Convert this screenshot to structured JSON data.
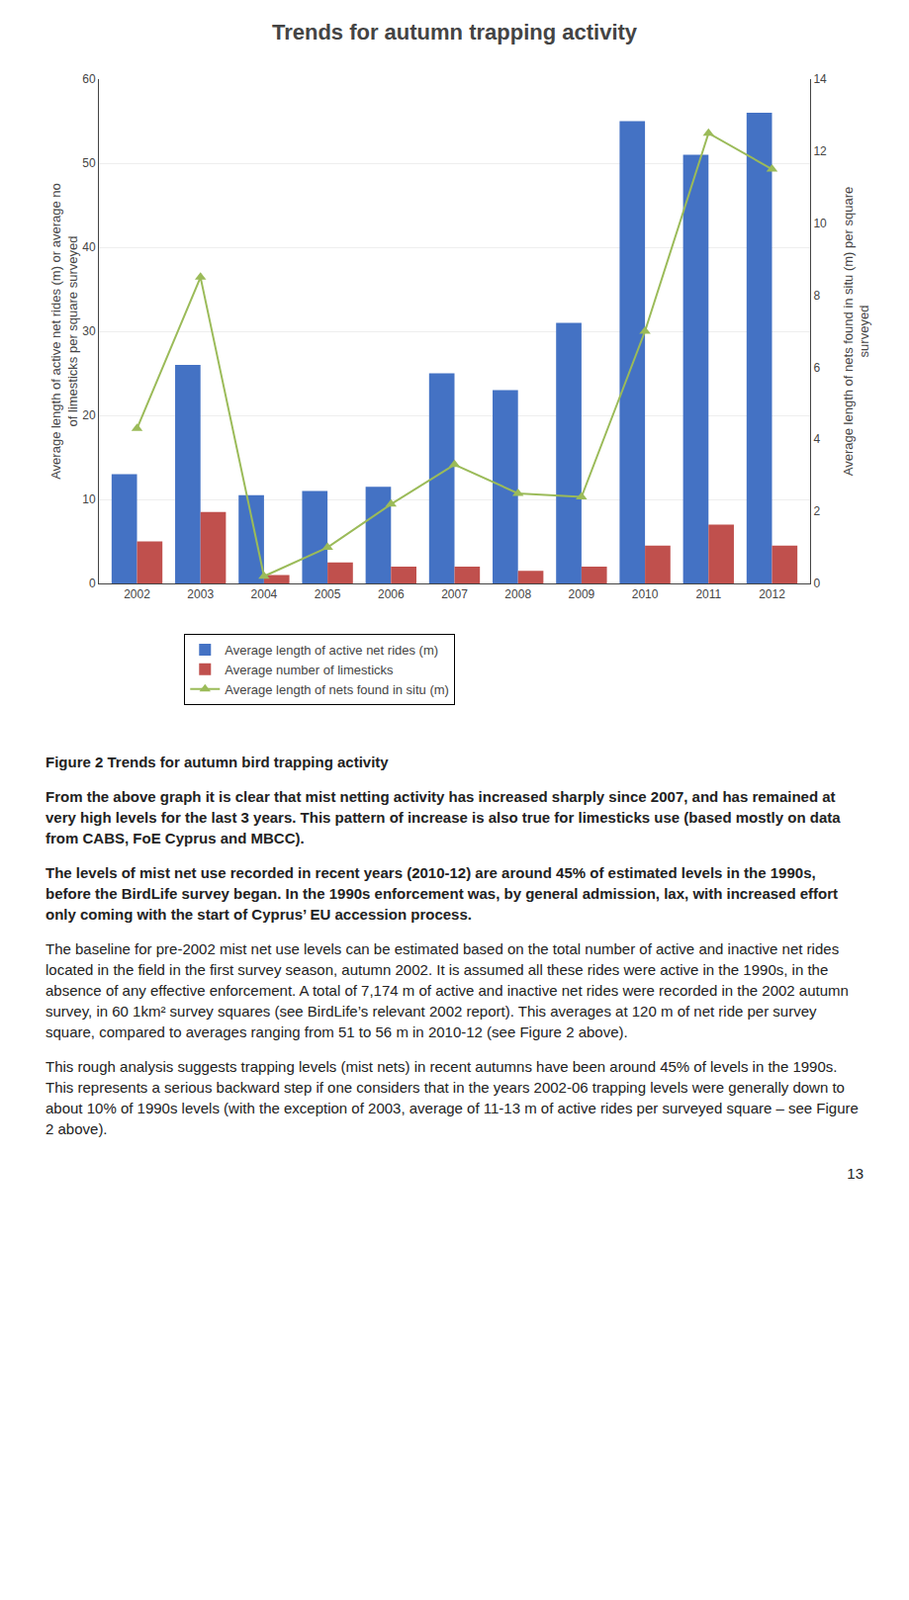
{
  "chart_data": {
    "type": "bar",
    "title": "Trends for autumn trapping activity",
    "categories": [
      "2002",
      "2003",
      "2004",
      "2005",
      "2006",
      "2007",
      "2008",
      "2009",
      "2010",
      "2011",
      "2012"
    ],
    "ylabel": "Average length of active net rides (m) or average no\nof limesticks per square surveyed",
    "y2label": "Average length of nets found in situ (m) per square\nsurveyed",
    "series": [
      {
        "name": "Average length of active net rides (m)",
        "color": "#4472C4",
        "values": [
          13,
          26,
          10.5,
          11,
          11.5,
          25,
          23,
          31,
          55,
          51,
          56
        ]
      },
      {
        "name": "Average number of limesticks",
        "color": "#C0504D",
        "values": [
          5,
          8.5,
          1,
          2.5,
          2,
          2,
          1.5,
          2,
          4.5,
          7,
          4.5
        ]
      },
      {
        "name": "Average length of nets found in situ (m)",
        "type": "line",
        "axis": "y2",
        "color": "#9BBB59",
        "marker": "triangle-up",
        "values": [
          4.3,
          8.5,
          0.2,
          1,
          2.2,
          3.3,
          2.5,
          2.4,
          7,
          12.5,
          11.5
        ]
      }
    ],
    "ylim": [
      0,
      60
    ],
    "yticks": [
      0,
      10,
      20,
      30,
      40,
      50,
      60
    ],
    "y2lim": [
      0,
      14
    ],
    "y2ticks": [
      0,
      2,
      4,
      6,
      8,
      10,
      12,
      14
    ],
    "grid": true,
    "legend": "bottom",
    "annotations": [
      "Figure 2 Trends for autumn bird trapping activity",
      "From the above graph it is clear that mist netting activity has increased sharply since 2007, and has remained at very high levels for the last 3 years. This pattern of increase is also true for limesticks use (based mostly on data from CABS, FoE Cyprus and MBCC).",
      "The levels of mist net use recorded in recent years (2010-12) are around 45% of estimated levels in the 1990s, before the BirdLife survey began. In the 1990s enforcement was, by general admission, lax, with increased effort only coming with the start of Cyprus’ EU accession process.",
      "The baseline for pre-2002 mist net use levels can be estimated based on the total number of active and inactive net rides located in the field in the first survey season, autumn 2002. It is assumed all these rides were active in the 1990s, in the absence of any effective enforcement. A total of 7,174 m of active and inactive net rides were recorded in the 2002 autumn survey, in 60 1km² survey squares (see BirdLife’s relevant 2002 report). This averages at 120 m of net ride per survey square, compared to averages ranging from 51 to 56 m in 2010-12 (see Figure 2 above).",
      "This rough analysis suggests trapping levels (mist nets) in recent autumns have been around 45% of levels in the 1990s. This represents a serious backward step if one considers that in the years 2002-06 trapping levels were generally down to about 10% of 1990s levels (with the exception of 2003, average of 11-13 m of active rides per surveyed square – see Figure 2 above).",
      "13"
    ]
  }
}
